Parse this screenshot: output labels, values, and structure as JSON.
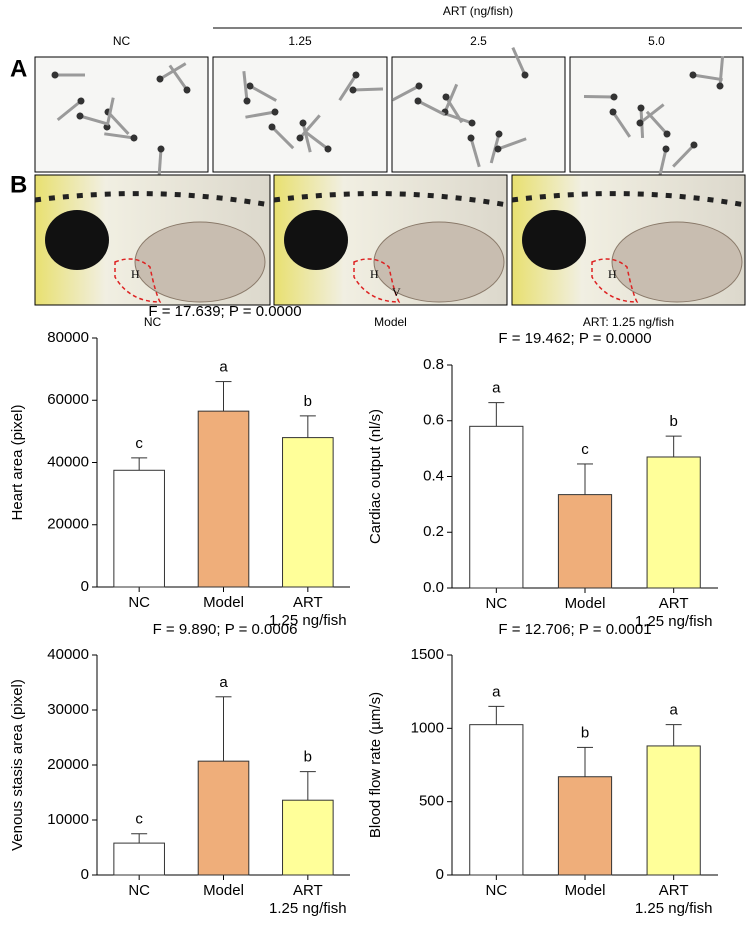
{
  "panel_labels": [
    "A",
    "B"
  ],
  "panel_a": {
    "group_label": "ART (ng/fish)",
    "columns": [
      "NC",
      "1.25",
      "2.5",
      "5.0"
    ]
  },
  "panel_b": {
    "captions": [
      "NC",
      "Model",
      "ART: 1.25 ng/fish"
    ],
    "annotations": [
      [
        "H"
      ],
      [
        "H",
        "V"
      ],
      [
        "H"
      ]
    ]
  },
  "chart_data": [
    {
      "type": "bar",
      "title": "F = 17.639; P = 0.0000",
      "y_label": "Heart area (pixel)",
      "categories": [
        "NC",
        "Model",
        "ART\n1.25 ng/fish"
      ],
      "series": [
        {
          "values": [
            37500,
            56500,
            48000
          ],
          "errors": [
            4000,
            9500,
            7000
          ],
          "letters": [
            "c",
            "a",
            "b"
          ],
          "colors": [
            "#ffffff",
            "#efae7a",
            "#ffff99"
          ]
        }
      ],
      "ylim": [
        0,
        80000
      ],
      "yticks": [
        0,
        20000,
        40000,
        60000,
        80000
      ]
    },
    {
      "type": "bar",
      "title": "F = 19.462; P = 0.0000",
      "y_label": "Cardiac output (nl/s)",
      "categories": [
        "NC",
        "Model",
        "ART\n1.25 ng/fish"
      ],
      "series": [
        {
          "values": [
            0.58,
            0.335,
            0.47
          ],
          "errors": [
            0.085,
            0.11,
            0.075
          ],
          "letters": [
            "a",
            "c",
            "b"
          ],
          "colors": [
            "#ffffff",
            "#efae7a",
            "#ffff99"
          ]
        }
      ],
      "ylim": [
        0,
        0.8
      ],
      "yticks": [
        {
          "value": 0,
          "label": "0.0"
        },
        0.2,
        0.4,
        0.6,
        0.8
      ]
    },
    {
      "type": "bar",
      "title": "F = 9.890; P = 0.0006",
      "y_label": "Venous stasis area (pixel)",
      "categories": [
        "NC",
        "Model",
        "ART\n1.25 ng/fish"
      ],
      "series": [
        {
          "values": [
            5800,
            20700,
            13600
          ],
          "errors": [
            1700,
            11700,
            5200
          ],
          "letters": [
            "c",
            "a",
            "b"
          ],
          "colors": [
            "#ffffff",
            "#efae7a",
            "#ffff99"
          ]
        }
      ],
      "ylim": [
        0,
        40000
      ],
      "yticks": [
        0,
        10000,
        20000,
        30000,
        40000
      ]
    },
    {
      "type": "bar",
      "title": "F = 12.706; P = 0.0001",
      "y_label": "Blood flow rate (µm/s)",
      "categories": [
        "NC",
        "Model",
        "ART\n1.25 ng/fish"
      ],
      "series": [
        {
          "values": [
            1025,
            670,
            880
          ],
          "errors": [
            125,
            200,
            145
          ],
          "letters": [
            "a",
            "b",
            "a"
          ],
          "colors": [
            "#ffffff",
            "#efae7a",
            "#ffff99"
          ]
        }
      ],
      "ylim": [
        0,
        1500
      ],
      "yticks": [
        0,
        500,
        1000,
        1500
      ]
    }
  ]
}
